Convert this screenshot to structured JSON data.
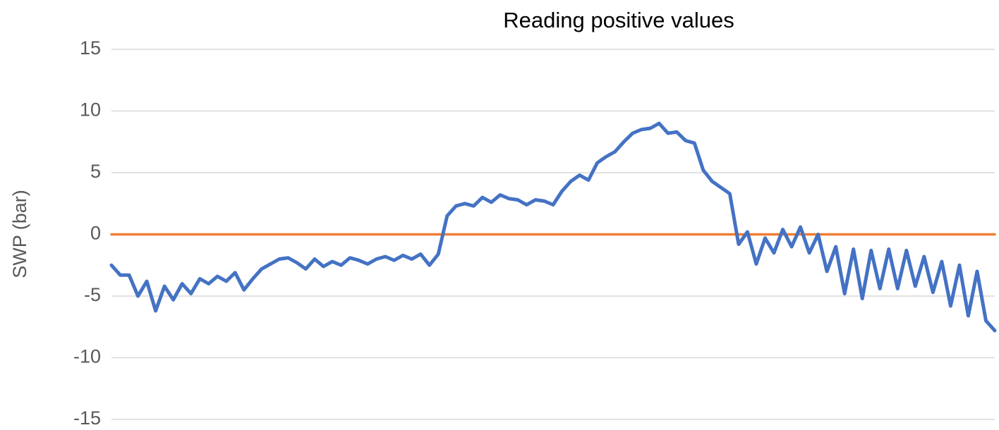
{
  "chart_data": {
    "type": "line",
    "title": "Reading positive values",
    "y_label": "SWP (bar)",
    "ylim": [
      -15,
      15
    ],
    "yticks": [
      -15,
      -10,
      -5,
      0,
      5,
      10,
      15
    ],
    "grid": true,
    "series": [
      {
        "color": "#4472c4",
        "values": [
          -2.5,
          -3.3,
          -3.3,
          -5,
          -3.8,
          -6.2,
          -4.2,
          -5.3,
          -4,
          -4.8,
          -3.6,
          -4,
          -3.4,
          -3.8,
          -3.1,
          -4.5,
          -3.6,
          -2.8,
          -2.4,
          -2,
          -1.9,
          -2.3,
          -2.8,
          -2,
          -2.6,
          -2.2,
          -2.5,
          -1.9,
          -2.1,
          -2.4,
          -2,
          -1.8,
          -2.1,
          -1.7,
          -2,
          -1.6,
          -2.5,
          -1.6,
          1.5,
          2.3,
          2.5,
          2.3,
          3,
          2.6,
          3.2,
          2.9,
          2.8,
          2.4,
          2.8,
          2.7,
          2.4,
          3.5,
          4.3,
          4.8,
          4.4,
          5.8,
          6.3,
          6.7,
          7.5,
          8.2,
          8.5,
          8.6,
          9,
          8.2,
          8.3,
          7.6,
          7.4,
          5.2,
          4.3,
          3.8,
          3.3,
          -0.8,
          0.2,
          -2.4,
          -0.3,
          -1.5,
          0.4,
          -1,
          0.6,
          -1.5,
          0,
          -3,
          -1,
          -4.8,
          -1.2,
          -5.2,
          -1.3,
          -4.4,
          -1.2,
          -4.4,
          -1.3,
          -4.2,
          -1.8,
          -4.7,
          -2.2,
          -5.8,
          -2.5,
          -6.6,
          -3,
          -7,
          -7.8
        ]
      },
      {
        "color": "#ed7d31",
        "values": [
          0,
          0,
          0,
          0,
          0,
          0,
          0,
          0,
          0,
          0,
          0,
          0,
          0,
          0,
          0,
          0,
          0,
          0,
          0,
          0,
          0,
          0,
          0,
          0,
          0,
          0,
          0,
          0,
          0,
          0,
          0,
          0,
          0,
          0,
          0,
          0,
          0,
          0,
          0,
          0,
          0,
          0,
          0,
          0,
          0,
          0,
          0,
          0,
          0,
          0,
          0,
          0,
          0,
          0,
          0,
          0,
          0,
          0,
          0,
          0,
          0,
          0,
          0,
          0,
          0,
          0,
          0,
          0,
          0,
          0,
          0,
          0,
          0,
          0,
          0,
          0,
          0,
          0,
          0,
          0,
          0,
          0,
          0,
          0,
          0,
          0,
          0,
          0,
          0,
          0,
          0,
          0,
          0,
          0,
          0,
          0,
          0,
          0,
          0,
          0,
          0
        ]
      }
    ]
  }
}
